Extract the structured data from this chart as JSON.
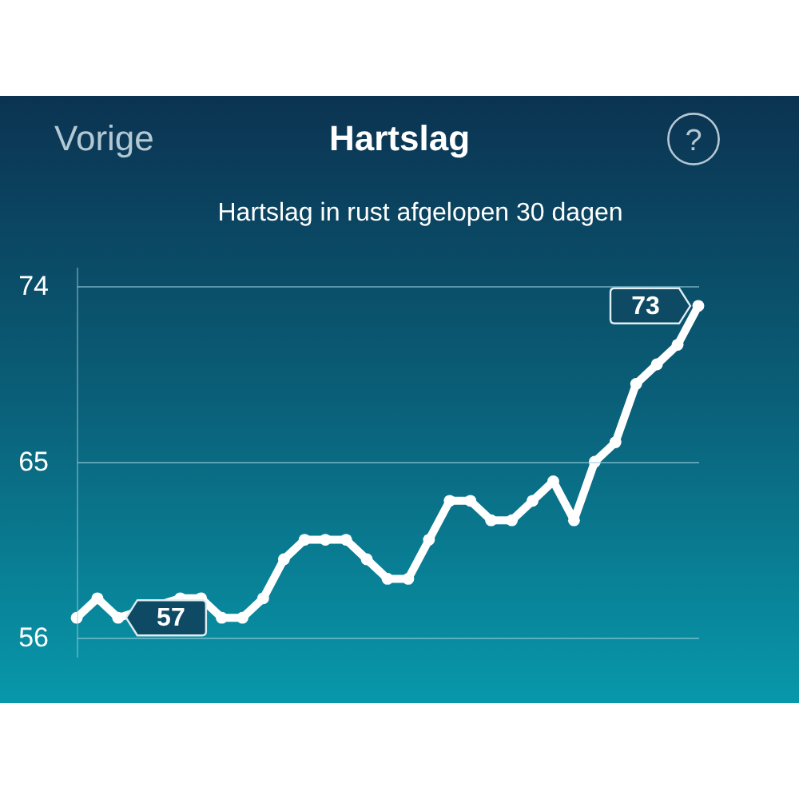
{
  "chart_data": {
    "type": "line",
    "title": "Hartslag",
    "subtitle": "Hartslag in rust afgelopen 30 dagen",
    "annotations": [
      "Vorige",
      "?"
    ],
    "categories": [
      null,
      null,
      null,
      null,
      null,
      null,
      null,
      null,
      null,
      null,
      null,
      null,
      null,
      null,
      null,
      null,
      null,
      null,
      null,
      null,
      null,
      null,
      null,
      null,
      null,
      null,
      null,
      null,
      null,
      null,
      null
    ],
    "values": [
      57,
      58,
      57,
      null,
      null,
      58,
      58,
      57,
      57,
      58,
      60,
      61,
      61,
      61,
      60,
      59,
      59,
      61,
      63,
      63,
      62,
      62,
      63,
      64,
      62,
      65,
      66,
      69,
      70,
      71,
      73
    ],
    "value_labels": [
      null,
      null,
      "57",
      null,
      null,
      null,
      null,
      null,
      null,
      null,
      null,
      null,
      null,
      null,
      null,
      null,
      null,
      null,
      null,
      null,
      null,
      null,
      null,
      null,
      null,
      null,
      null,
      null,
      null,
      null,
      "73"
    ],
    "color": "#ffffff",
    "ylim": [
      55,
      75
    ],
    "yticks": [
      56,
      65,
      74
    ],
    "grid": "y",
    "marker": "circle",
    "line_style": "solid",
    "tick_labels": "y"
  }
}
